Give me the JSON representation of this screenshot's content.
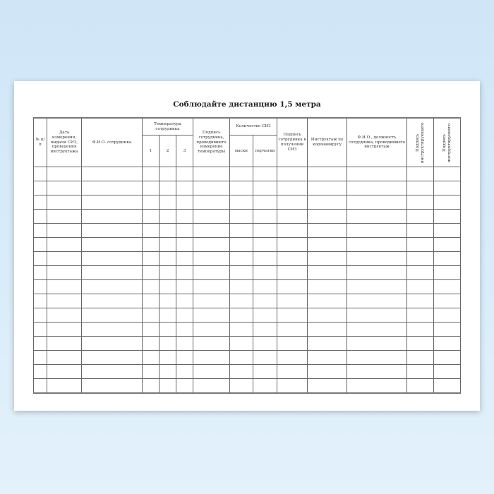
{
  "title": "Соблюдайте дистанцию 1,5 метра",
  "columns": {
    "num": "№ п/п",
    "date": "Дата измерения, выдачи СИЗ, проведения инструктажа",
    "fio": "Ф.И.О. сотрудника",
    "temp": "Температура сотрудника",
    "temp1": "1",
    "temp2": "2",
    "temp3": "3",
    "sign_measure": "Подпись сотрудника, проводившего измерение температуры",
    "siz_count": "Количество СИЗ",
    "masks": "маски",
    "gloves": "перчатки",
    "sign_siz": "Подпись сотрудника в получении СИЗ",
    "instruction": "Инструктаж по коронавирусу",
    "instructor": "Ф.И.О., должность сотрудника, проводившего инструктаж",
    "sign_instructor": "Подпись инструктирующего",
    "sign_instructed": "Подпись инструктируемого"
  },
  "row_count": 16,
  "colors": {
    "background": "#d8ecf9",
    "sheet": "#ffffff",
    "lines": "#666666"
  }
}
